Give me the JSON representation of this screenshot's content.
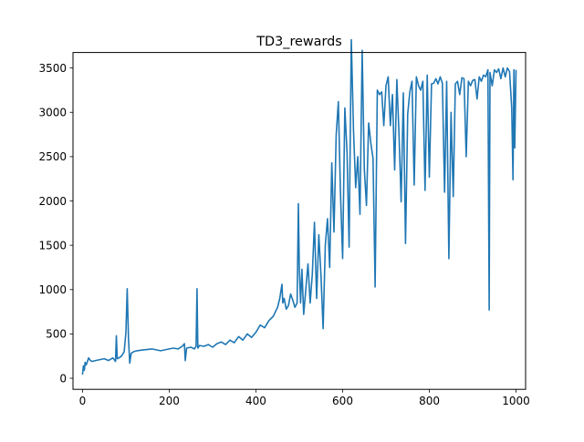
{
  "chart_data": {
    "type": "line",
    "title": "TD3_rewards",
    "xlabel": "",
    "ylabel": "",
    "xlim": [
      -22,
      1022
    ],
    "ylim": [
      -125,
      3675
    ],
    "xticks": [
      0,
      200,
      400,
      600,
      800,
      1000
    ],
    "yticks": [
      0,
      500,
      1000,
      1500,
      2000,
      2500,
      3000,
      3500
    ],
    "x_tick_labels": [
      "0",
      "200",
      "400",
      "600",
      "800",
      "1000"
    ],
    "y_tick_labels": [
      "0",
      "500",
      "1000",
      "1500",
      "2000",
      "2500",
      "3000",
      "3500"
    ],
    "grid": false,
    "legend": "none",
    "series": [
      {
        "color": "#1f77b4",
        "x": [
          0,
          2,
          4,
          6,
          8,
          10,
          14,
          18,
          22,
          30,
          40,
          50,
          60,
          70,
          76,
          78,
          80,
          84,
          90,
          96,
          100,
          103,
          106,
          109,
          112,
          118,
          125,
          140,
          160,
          180,
          200,
          210,
          220,
          230,
          235,
          237,
          240,
          250,
          258,
          262,
          264,
          266,
          270,
          280,
          290,
          300,
          310,
          320,
          330,
          340,
          350,
          360,
          370,
          380,
          390,
          400,
          410,
          420,
          430,
          440,
          450,
          455,
          460,
          462,
          465,
          470,
          475,
          480,
          485,
          490,
          495,
          498,
          500,
          503,
          506,
          510,
          515,
          520,
          525,
          530,
          535,
          540,
          545,
          550,
          555,
          560,
          565,
          570,
          575,
          580,
          585,
          590,
          595,
          600,
          605,
          610,
          615,
          620,
          625,
          630,
          635,
          640,
          645,
          650,
          655,
          660,
          665,
          670,
          675,
          680,
          685,
          690,
          695,
          700,
          705,
          710,
          715,
          720,
          725,
          730,
          735,
          740,
          745,
          750,
          755,
          760,
          765,
          770,
          775,
          780,
          785,
          790,
          795,
          800,
          805,
          810,
          815,
          820,
          825,
          830,
          835,
          840,
          845,
          850,
          855,
          860,
          865,
          870,
          875,
          880,
          885,
          890,
          895,
          900,
          905,
          910,
          915,
          920,
          925,
          930,
          935,
          938,
          940,
          945,
          950,
          955,
          960,
          965,
          970,
          975,
          980,
          985,
          990,
          993,
          995,
          997,
          1000
        ],
        "y": [
          50,
          140,
          90,
          180,
          150,
          170,
          230,
          200,
          190,
          200,
          210,
          220,
          200,
          230,
          190,
          480,
          220,
          230,
          250,
          300,
          520,
          1010,
          450,
          170,
          280,
          300,
          310,
          320,
          330,
          310,
          330,
          340,
          330,
          360,
          390,
          200,
          340,
          350,
          330,
          360,
          1010,
          340,
          370,
          360,
          380,
          350,
          390,
          410,
          380,
          430,
          400,
          470,
          430,
          500,
          460,
          520,
          600,
          570,
          650,
          700,
          800,
          900,
          1060,
          850,
          900,
          780,
          820,
          950,
          880,
          800,
          850,
          1970,
          1250,
          850,
          1230,
          720,
          1000,
          1290,
          850,
          1180,
          1760,
          900,
          1620,
          1150,
          560,
          1500,
          1800,
          1250,
          2430,
          1650,
          2740,
          3120,
          2100,
          1350,
          3050,
          2550,
          1480,
          3820,
          2800,
          2150,
          2500,
          1850,
          3700,
          2350,
          1950,
          2880,
          2650,
          2480,
          1030,
          3250,
          3200,
          3230,
          2850,
          3300,
          3400,
          2850,
          3200,
          2350,
          3370,
          2750,
          1990,
          3220,
          1520,
          2980,
          3230,
          3350,
          2180,
          3400,
          3300,
          3250,
          3350,
          2120,
          3420,
          2270,
          3320,
          3330,
          3380,
          3320,
          3400,
          3330,
          2100,
          3350,
          1350,
          3000,
          2050,
          3320,
          3350,
          3200,
          3390,
          3380,
          2500,
          3350,
          3300,
          3360,
          3370,
          3150,
          3400,
          3350,
          3420,
          3400,
          3480,
          770,
          3450,
          3300,
          3480,
          3450,
          3490,
          3380,
          3500,
          3400,
          3500,
          3460,
          3050,
          2240,
          3480,
          2600,
          3470
        ]
      }
    ]
  }
}
